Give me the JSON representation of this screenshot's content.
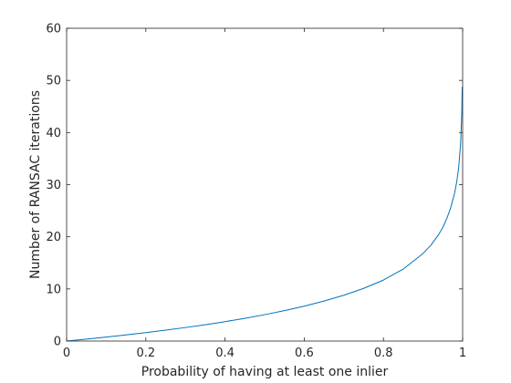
{
  "chart_data": {
    "type": "line",
    "title": "",
    "xlabel": "Probability of having at least one inlier",
    "ylabel": "Number of RANSAC iterations",
    "xlim": [
      0,
      1
    ],
    "ylim": [
      0,
      60
    ],
    "x_ticks": [
      "0",
      "0.2",
      "0.4",
      "0.6",
      "0.8",
      "1"
    ],
    "y_ticks": [
      "0",
      "10",
      "20",
      "30",
      "40",
      "50",
      "60"
    ],
    "grid": false,
    "box": true,
    "series": [
      {
        "color": "#0072BD",
        "x": [
          0,
          0.05,
          0.1,
          0.15,
          0.2,
          0.25,
          0.3,
          0.35,
          0.4,
          0.45,
          0.5,
          0.55,
          0.6,
          0.65,
          0.7,
          0.75,
          0.8,
          0.85,
          0.9,
          0.92,
          0.94,
          0.95,
          0.96,
          0.97,
          0.98,
          0.985,
          0.99,
          0.995,
          0.998,
          0.999
        ],
        "y": [
          0,
          0.37,
          0.76,
          1.18,
          1.62,
          2.09,
          2.59,
          3.13,
          3.72,
          4.36,
          5.06,
          5.83,
          6.69,
          7.67,
          8.79,
          10.1,
          11.7,
          13.8,
          16.8,
          18.4,
          20.5,
          21.8,
          23.5,
          25.6,
          28.5,
          30.5,
          33.3,
          38.0,
          44.2,
          48.8
        ]
      }
    ]
  }
}
